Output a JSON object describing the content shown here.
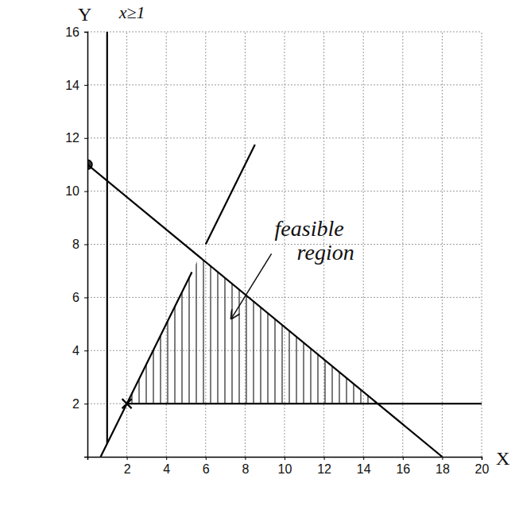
{
  "chart_data": {
    "type": "line",
    "x_label": "X",
    "y_label": "Y",
    "xlim": [
      0,
      20
    ],
    "ylim": [
      0,
      16
    ],
    "xticks": [
      2,
      4,
      6,
      8,
      10,
      12,
      14,
      16,
      18,
      20
    ],
    "yticks": [
      2,
      4,
      6,
      8,
      10,
      12,
      14,
      16
    ],
    "grid": true,
    "series": [
      {
        "color": "#000000",
        "x": [
          1,
          1
        ],
        "values": [
          0.5,
          16
        ]
      },
      {
        "color": "#000000",
        "x": [
          0,
          18
        ],
        "values": [
          11,
          0
        ]
      },
      {
        "color": "#000000",
        "x": [
          0.67,
          5.3,
          5.6,
          6,
          8.5
        ],
        "values": [
          0,
          6.95,
          null,
          8,
          11.75
        ]
      },
      {
        "color": "#000000",
        "x": [
          2,
          20
        ],
        "values": [
          2,
          2
        ]
      },
      {
        "type": "scatter",
        "marker": "circle",
        "color": "#000000",
        "x": [
          0
        ],
        "values": [
          11
        ]
      },
      {
        "type": "scatter",
        "marker": "x",
        "color": "#000000",
        "x": [
          2
        ],
        "values": [
          2
        ]
      }
    ],
    "region": {
      "x": [
        2,
        5.68,
        14.73
      ],
      "y": [
        2,
        7.53,
        2
      ]
    },
    "annotations": [
      {
        "text": "x≥1",
        "x": 1.6,
        "y": 16.5
      },
      {
        "text": "feasible region",
        "x": 9.5,
        "y": 8.3,
        "arrow_to": [
          7.3,
          5.2
        ]
      }
    ]
  }
}
